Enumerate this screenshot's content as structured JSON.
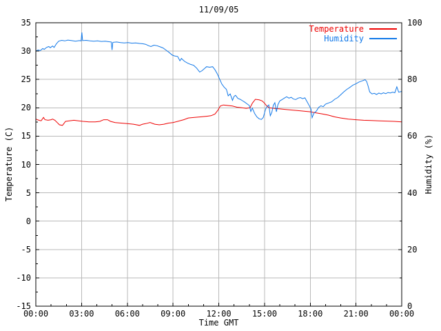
{
  "chart_data": {
    "type": "line",
    "title": "11/09/05",
    "xlabel": "Time GMT",
    "ylabel_left": "Temperature (C)",
    "ylabel_right": "Humidity (%)",
    "grid": {
      "show": true,
      "color": "#b8b8b8"
    },
    "axis_color": "#000000",
    "x_axis": {
      "min": 0,
      "max": 24,
      "minor_step": 1,
      "major_tick_values": [
        0,
        3,
        6,
        9,
        12,
        15,
        18,
        21,
        24
      ],
      "major_tick_labels": [
        "00:00",
        "03:00",
        "06:00",
        "09:00",
        "12:00",
        "15:00",
        "18:00",
        "21:00",
        "00:00"
      ]
    },
    "y_left": {
      "min": -15,
      "max": 35,
      "minor_step": 2.5,
      "major_tick_values": [
        35,
        30,
        25,
        20,
        15,
        10,
        5,
        0,
        -5,
        -10,
        -15
      ],
      "major_tick_labels": [
        "35",
        "30",
        "25",
        "20",
        "15",
        "10",
        "5",
        "0",
        "-5",
        "-10",
        "-15"
      ]
    },
    "y_right": {
      "min": 0,
      "max": 100,
      "minor_step": 10,
      "major_tick_values": [
        100,
        80,
        60,
        40,
        20,
        0
      ],
      "major_tick_labels": [
        "100",
        "80",
        "60",
        "40",
        "20",
        "0"
      ]
    },
    "legend": {
      "position": "top-right",
      "items": [
        {
          "label": "Temperature",
          "color": "#ee0000"
        },
        {
          "label": "Humidity",
          "color": "#1178e8"
        }
      ]
    },
    "series": [
      {
        "name": "Temperature",
        "axis": "left",
        "color": "#ee0000",
        "points": [
          [
            0,
            18.0
          ],
          [
            0.2,
            17.8
          ],
          [
            0.35,
            17.7
          ],
          [
            0.5,
            18.3
          ],
          [
            0.6,
            17.9
          ],
          [
            0.8,
            17.8
          ],
          [
            1.0,
            17.9
          ],
          [
            1.1,
            18.0
          ],
          [
            1.25,
            17.8
          ],
          [
            1.4,
            17.4
          ],
          [
            1.55,
            17.0
          ],
          [
            1.75,
            16.9
          ],
          [
            1.95,
            17.6
          ],
          [
            2.2,
            17.7
          ],
          [
            2.5,
            17.8
          ],
          [
            2.8,
            17.7
          ],
          [
            3.1,
            17.6
          ],
          [
            3.5,
            17.5
          ],
          [
            3.9,
            17.5
          ],
          [
            4.2,
            17.6
          ],
          [
            4.45,
            17.9
          ],
          [
            4.7,
            17.9
          ],
          [
            4.9,
            17.6
          ],
          [
            5.2,
            17.4
          ],
          [
            5.6,
            17.3
          ],
          [
            6.0,
            17.2
          ],
          [
            6.4,
            17.1
          ],
          [
            6.8,
            16.9
          ],
          [
            7.0,
            17.1
          ],
          [
            7.2,
            17.2
          ],
          [
            7.5,
            17.4
          ],
          [
            7.8,
            17.1
          ],
          [
            8.1,
            17.0
          ],
          [
            8.4,
            17.1
          ],
          [
            8.7,
            17.3
          ],
          [
            9.0,
            17.4
          ],
          [
            9.3,
            17.6
          ],
          [
            9.7,
            17.9
          ],
          [
            10.0,
            18.2
          ],
          [
            10.4,
            18.3
          ],
          [
            10.8,
            18.4
          ],
          [
            11.2,
            18.5
          ],
          [
            11.5,
            18.6
          ],
          [
            11.75,
            18.9
          ],
          [
            11.95,
            19.6
          ],
          [
            12.1,
            20.3
          ],
          [
            12.3,
            20.5
          ],
          [
            12.6,
            20.4
          ],
          [
            12.9,
            20.3
          ],
          [
            13.2,
            20.1
          ],
          [
            13.5,
            20.0
          ],
          [
            13.8,
            19.9
          ],
          [
            14.05,
            20.0
          ],
          [
            14.2,
            20.8
          ],
          [
            14.4,
            21.5
          ],
          [
            14.65,
            21.4
          ],
          [
            14.85,
            21.2
          ],
          [
            15.0,
            20.8
          ],
          [
            15.15,
            20.3
          ],
          [
            15.3,
            20.0
          ],
          [
            15.6,
            19.9
          ],
          [
            16.0,
            19.8
          ],
          [
            16.4,
            19.7
          ],
          [
            16.8,
            19.6
          ],
          [
            17.2,
            19.5
          ],
          [
            17.6,
            19.4
          ],
          [
            18.0,
            19.3
          ],
          [
            18.4,
            19.1
          ],
          [
            18.8,
            18.9
          ],
          [
            19.2,
            18.7
          ],
          [
            19.6,
            18.4
          ],
          [
            20.0,
            18.2
          ],
          [
            20.5,
            18.0
          ],
          [
            21.0,
            17.9
          ],
          [
            21.5,
            17.8
          ],
          [
            22.0,
            17.75
          ],
          [
            22.5,
            17.7
          ],
          [
            23.0,
            17.65
          ],
          [
            23.5,
            17.6
          ],
          [
            24.0,
            17.5
          ]
        ]
      },
      {
        "name": "Humidity",
        "axis": "right",
        "color": "#1178e8",
        "points": [
          [
            0,
            90.0
          ],
          [
            0.15,
            90.4
          ],
          [
            0.3,
            90.2
          ],
          [
            0.45,
            90.9
          ],
          [
            0.55,
            90.6
          ],
          [
            0.7,
            91.3
          ],
          [
            0.85,
            91.6
          ],
          [
            0.95,
            91.2
          ],
          [
            1.1,
            91.8
          ],
          [
            1.2,
            91.3
          ],
          [
            1.35,
            92.6
          ],
          [
            1.5,
            93.5
          ],
          [
            1.7,
            93.8
          ],
          [
            1.9,
            93.6
          ],
          [
            2.1,
            93.9
          ],
          [
            2.35,
            93.7
          ],
          [
            2.6,
            93.5
          ],
          [
            2.85,
            93.7
          ],
          [
            2.97,
            93.6
          ],
          [
            3.02,
            96.6
          ],
          [
            3.07,
            93.7
          ],
          [
            3.3,
            93.8
          ],
          [
            3.55,
            93.6
          ],
          [
            3.8,
            93.5
          ],
          [
            4.05,
            93.6
          ],
          [
            4.3,
            93.4
          ],
          [
            4.55,
            93.5
          ],
          [
            4.8,
            93.3
          ],
          [
            4.95,
            93.2
          ],
          [
            5.0,
            90.4
          ],
          [
            5.05,
            93.1
          ],
          [
            5.3,
            93.2
          ],
          [
            5.55,
            93.0
          ],
          [
            5.8,
            92.9
          ],
          [
            6.05,
            93.0
          ],
          [
            6.3,
            92.8
          ],
          [
            6.55,
            92.9
          ],
          [
            6.8,
            92.7
          ],
          [
            7.0,
            92.6
          ],
          [
            7.2,
            92.4
          ],
          [
            7.4,
            91.9
          ],
          [
            7.55,
            91.6
          ],
          [
            7.75,
            92.1
          ],
          [
            7.95,
            91.9
          ],
          [
            8.15,
            91.5
          ],
          [
            8.35,
            91.1
          ],
          [
            8.55,
            90.3
          ],
          [
            8.75,
            89.5
          ],
          [
            8.95,
            88.6
          ],
          [
            9.1,
            88.3
          ],
          [
            9.3,
            88.1
          ],
          [
            9.45,
            86.6
          ],
          [
            9.55,
            87.4
          ],
          [
            9.75,
            86.4
          ],
          [
            9.95,
            85.8
          ],
          [
            10.15,
            85.3
          ],
          [
            10.35,
            85.0
          ],
          [
            10.55,
            84.0
          ],
          [
            10.75,
            82.6
          ],
          [
            10.9,
            83.1
          ],
          [
            11.05,
            83.8
          ],
          [
            11.2,
            84.5
          ],
          [
            11.4,
            84.3
          ],
          [
            11.6,
            84.5
          ],
          [
            11.75,
            83.4
          ],
          [
            11.9,
            82.0
          ],
          [
            12.05,
            80.2
          ],
          [
            12.2,
            78.4
          ],
          [
            12.35,
            77.3
          ],
          [
            12.5,
            76.5
          ],
          [
            12.62,
            74.2
          ],
          [
            12.75,
            74.9
          ],
          [
            12.9,
            72.6
          ],
          [
            13.0,
            74.0
          ],
          [
            13.1,
            74.4
          ],
          [
            13.25,
            73.3
          ],
          [
            13.4,
            73.0
          ],
          [
            13.55,
            72.5
          ],
          [
            13.7,
            72.0
          ],
          [
            13.85,
            71.4
          ],
          [
            14.0,
            70.8
          ],
          [
            14.1,
            68.7
          ],
          [
            14.2,
            69.9
          ],
          [
            14.35,
            68.0
          ],
          [
            14.5,
            66.8
          ],
          [
            14.65,
            66.1
          ],
          [
            14.8,
            65.9
          ],
          [
            14.92,
            66.6
          ],
          [
            15.0,
            68.2
          ],
          [
            15.08,
            69.6
          ],
          [
            15.18,
            70.6
          ],
          [
            15.28,
            71.0
          ],
          [
            15.38,
            67.2
          ],
          [
            15.48,
            68.4
          ],
          [
            15.58,
            70.9
          ],
          [
            15.68,
            71.8
          ],
          [
            15.78,
            68.6
          ],
          [
            15.88,
            71.1
          ],
          [
            16.0,
            72.4
          ],
          [
            16.15,
            72.9
          ],
          [
            16.3,
            73.4
          ],
          [
            16.45,
            73.9
          ],
          [
            16.6,
            73.4
          ],
          [
            16.75,
            73.7
          ],
          [
            16.9,
            73.1
          ],
          [
            17.05,
            72.9
          ],
          [
            17.2,
            73.4
          ],
          [
            17.35,
            73.6
          ],
          [
            17.5,
            73.2
          ],
          [
            17.65,
            73.5
          ],
          [
            17.8,
            72.1
          ],
          [
            17.95,
            70.6
          ],
          [
            18.05,
            69.5
          ],
          [
            18.12,
            66.5
          ],
          [
            18.25,
            68.2
          ],
          [
            18.4,
            68.8
          ],
          [
            18.55,
            70.1
          ],
          [
            18.7,
            70.7
          ],
          [
            18.85,
            70.4
          ],
          [
            19.0,
            71.3
          ],
          [
            19.2,
            71.7
          ],
          [
            19.4,
            72.1
          ],
          [
            19.6,
            73.0
          ],
          [
            19.8,
            73.6
          ],
          [
            20.0,
            74.6
          ],
          [
            20.2,
            75.6
          ],
          [
            20.4,
            76.5
          ],
          [
            20.6,
            77.2
          ],
          [
            20.8,
            78.0
          ],
          [
            21.0,
            78.5
          ],
          [
            21.2,
            79.1
          ],
          [
            21.4,
            79.5
          ],
          [
            21.6,
            79.9
          ],
          [
            21.7,
            79.3
          ],
          [
            21.8,
            77.6
          ],
          [
            21.9,
            75.6
          ],
          [
            22.05,
            74.9
          ],
          [
            22.2,
            75.1
          ],
          [
            22.35,
            74.7
          ],
          [
            22.5,
            75.2
          ],
          [
            22.65,
            74.9
          ],
          [
            22.8,
            75.3
          ],
          [
            22.95,
            75.0
          ],
          [
            23.1,
            75.4
          ],
          [
            23.25,
            75.2
          ],
          [
            23.4,
            75.5
          ],
          [
            23.55,
            75.3
          ],
          [
            23.68,
            77.4
          ],
          [
            23.8,
            75.5
          ],
          [
            24.0,
            75.8
          ]
        ]
      }
    ]
  }
}
